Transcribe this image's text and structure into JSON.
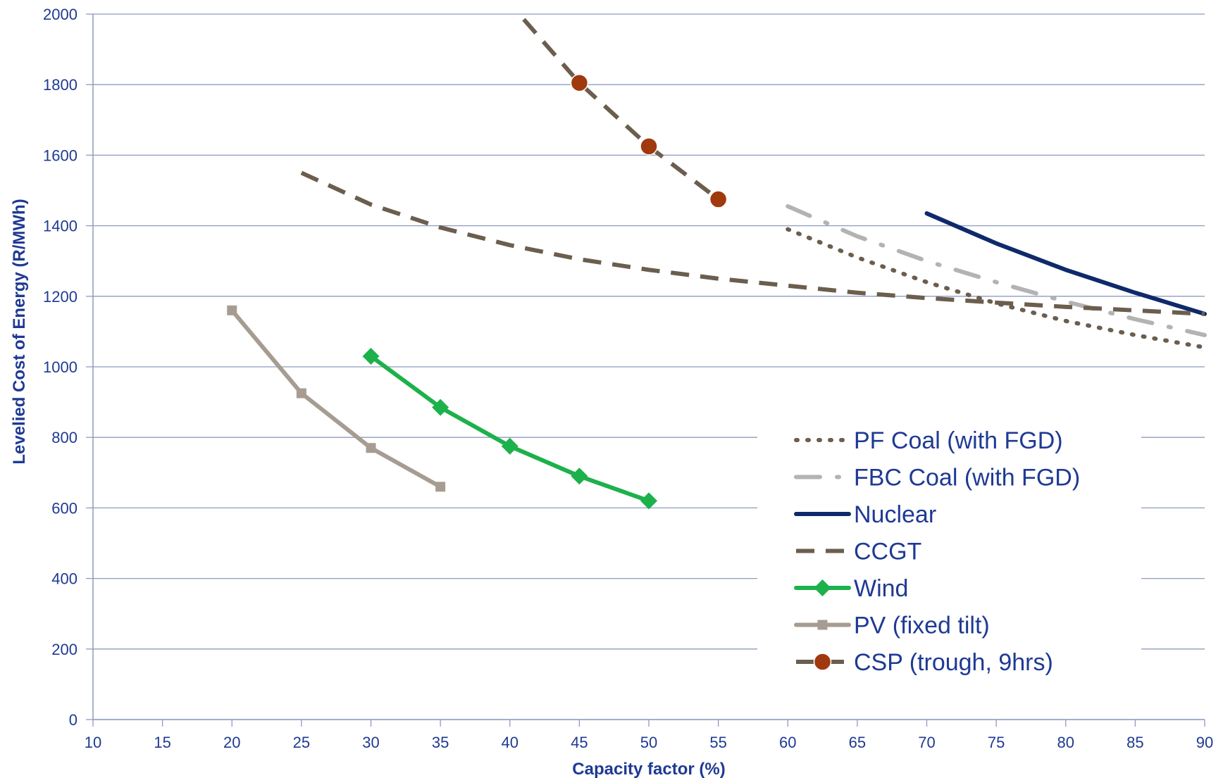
{
  "chart_data": {
    "type": "line",
    "title": "",
    "xlabel": "Capacity factor (%)",
    "ylabel": "Levelied Cost of Energy (R/MWh)",
    "xlim": [
      10,
      90
    ],
    "ylim": [
      0,
      2000
    ],
    "xticks": [
      10,
      15,
      20,
      25,
      30,
      35,
      40,
      45,
      50,
      55,
      60,
      65,
      70,
      75,
      80,
      85,
      90
    ],
    "yticks": [
      0,
      200,
      400,
      600,
      800,
      1000,
      1200,
      1400,
      1600,
      1800,
      2000
    ],
    "grid": "horizontal",
    "legend_position": "bottom-right",
    "series": [
      {
        "name": "PF Coal (with FGD)",
        "style": "dotted",
        "color": "#6b5e4e",
        "marker": "none",
        "x": [
          60,
          65,
          70,
          75,
          80,
          85,
          90
        ],
        "y": [
          1390,
          1310,
          1240,
          1180,
          1130,
          1090,
          1055
        ]
      },
      {
        "name": "FBC Coal (with FGD)",
        "style": "dash-dot",
        "color": "#b3b3b3",
        "marker": "none",
        "x": [
          60,
          65,
          70,
          75,
          80,
          85,
          90
        ],
        "y": [
          1455,
          1370,
          1300,
          1240,
          1185,
          1135,
          1090
        ]
      },
      {
        "name": "Nuclear",
        "style": "solid",
        "color": "#0f2a6b",
        "marker": "none",
        "x": [
          70,
          75,
          80,
          85,
          90
        ],
        "y": [
          1435,
          1350,
          1275,
          1210,
          1150
        ]
      },
      {
        "name": "CCGT",
        "style": "dashed",
        "color": "#6b5e4e",
        "marker": "none",
        "x": [
          25,
          30,
          35,
          40,
          45,
          50,
          55,
          60,
          65,
          70,
          75,
          80,
          85,
          90
        ],
        "y": [
          1550,
          1460,
          1395,
          1345,
          1305,
          1275,
          1250,
          1230,
          1210,
          1195,
          1182,
          1170,
          1160,
          1150
        ]
      },
      {
        "name": "Wind",
        "style": "solid",
        "color": "#1db14b",
        "marker": "diamond",
        "x": [
          30,
          35,
          40,
          45,
          50
        ],
        "y": [
          1030,
          885,
          775,
          690,
          620
        ]
      },
      {
        "name": "PV (fixed tilt)",
        "style": "solid",
        "color": "#a69c92",
        "marker": "square",
        "x": [
          20,
          25,
          30,
          35
        ],
        "y": [
          1160,
          925,
          770,
          660
        ]
      },
      {
        "name": "CSP (trough, 9hrs)",
        "style": "dashed",
        "color": "#6b5e4e",
        "marker": "circle",
        "marker_color": "#a0390e",
        "x": [
          41,
          45,
          50,
          55
        ],
        "y": [
          1985,
          1805,
          1625,
          1475
        ],
        "marker_x": [
          45,
          50,
          55
        ],
        "marker_y": [
          1805,
          1625,
          1475
        ]
      }
    ]
  }
}
